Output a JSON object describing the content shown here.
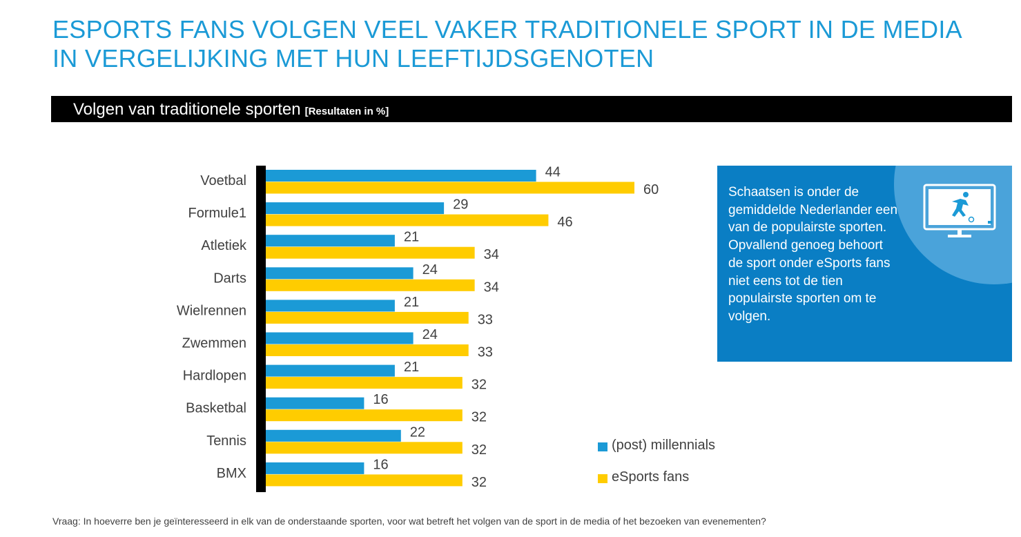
{
  "title": "ESPORTS FANS VOLGEN VEEL VAKER TRADITIONELE SPORT IN DE MEDIA IN VERGELIJKING MET HUN LEEFTIJDSGENOTEN",
  "subtitle": "Volgen van traditionele sporten",
  "subtitle_unit": "[Resultaten in %]",
  "info_box": {
    "text": "Schaatsen is onder de gemiddelde Nederlander een van de populairste sporten. Opvallend genoeg behoort de sport onder eSports fans niet eens tot de tien populairste sporten om te volgen.",
    "icon": "tv-football-player-icon",
    "background_color": "#0a7ec4"
  },
  "legend": [
    {
      "label": "(post) millennials",
      "color": "#1b9ad6"
    },
    {
      "label": "eSports fans",
      "color": "#ffcc00"
    }
  ],
  "footnote": "Vraag: In hoeverre ben je geïnteresseerd in elk van de onderstaande sporten, voor wat betreft het volgen van de sport in de media of het bezoeken van evenementen?",
  "chart_data": {
    "type": "bar",
    "orientation": "horizontal",
    "categories": [
      "Voetbal",
      "Formule1",
      "Atletiek",
      "Darts",
      "Wielrennen",
      "Zwemmen",
      "Hardlopen",
      "Basketbal",
      "Tennis",
      "BMX"
    ],
    "series": [
      {
        "name": "(post) millennials",
        "color": "#1b9ad6",
        "values": [
          44,
          29,
          21,
          24,
          21,
          24,
          21,
          16,
          22,
          16
        ]
      },
      {
        "name": "eSports fans",
        "color": "#ffcc00",
        "values": [
          60,
          46,
          34,
          34,
          33,
          33,
          32,
          32,
          32,
          32
        ]
      }
    ],
    "data_labels": true,
    "grid": false,
    "legend_position": "bottom-right"
  }
}
